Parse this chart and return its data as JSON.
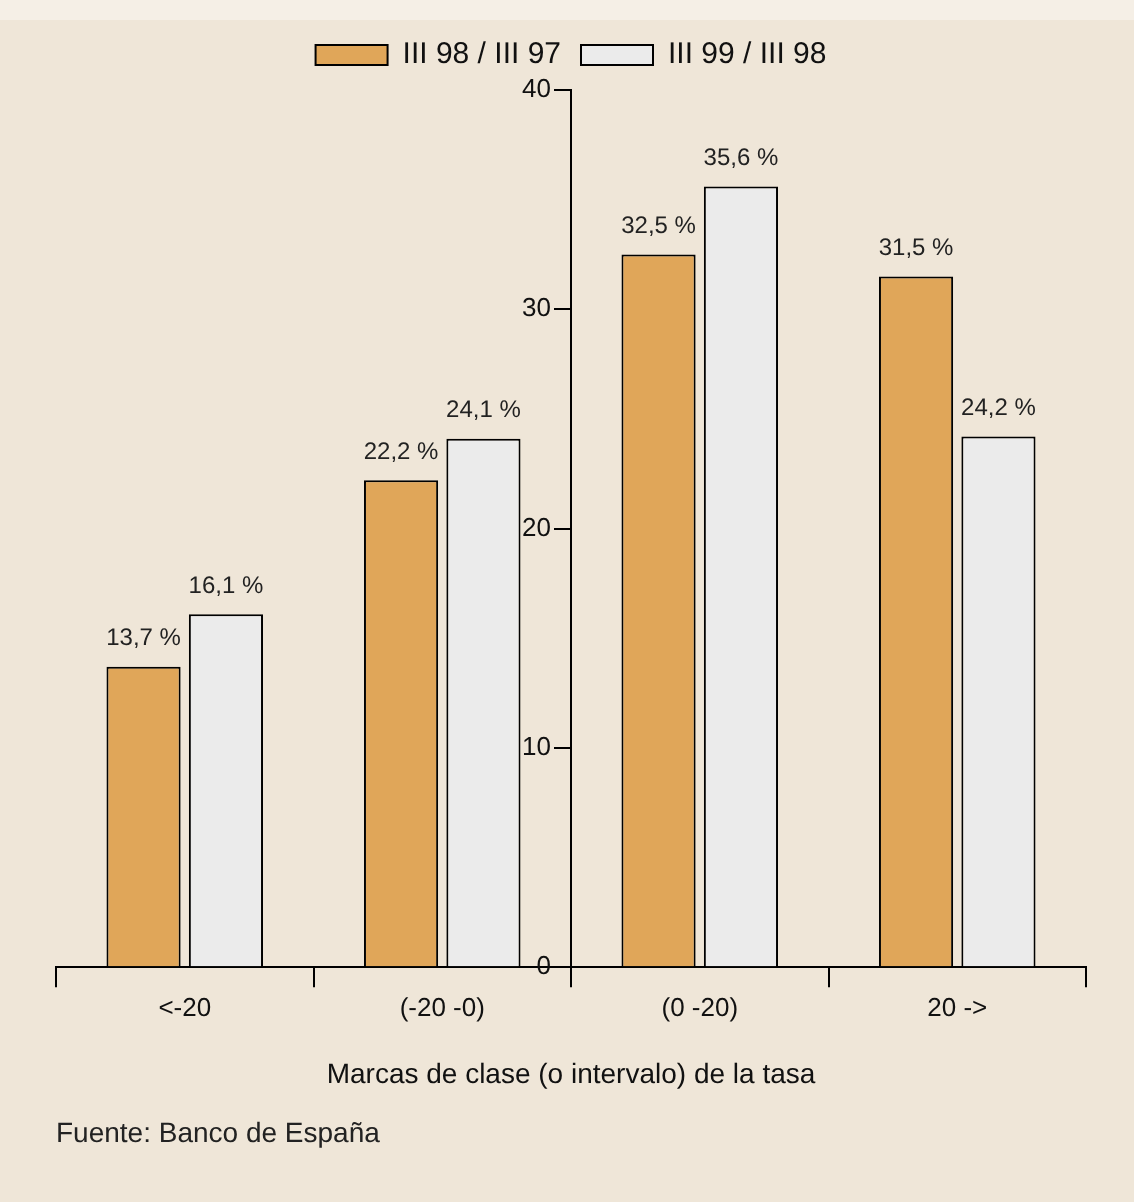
{
  "chart_data": {
    "type": "bar",
    "xlabel": "Marcas de clase (o intervalo) de la tasa",
    "categories": [
      "<-20",
      "(-20 -0)",
      "(0 -20)",
      "20 ->"
    ],
    "series": [
      {
        "name": "III 98 / III 97",
        "color": "#e0a659",
        "values": [
          13.7,
          22.2,
          32.5,
          31.5
        ],
        "value_labels": [
          "13,7 %",
          "22,2 %",
          "32,5 %",
          "31,5 %"
        ]
      },
      {
        "name": "III 99 / III 98",
        "color": "#ebebeb",
        "values": [
          16.1,
          24.1,
          35.6,
          24.2
        ],
        "value_labels": [
          "16,1 %",
          "24,1 %",
          "35,6 %",
          "24,2 %"
        ]
      }
    ],
    "ylim": [
      0,
      40
    ],
    "yticks": [
      0,
      10,
      20,
      30,
      40
    ],
    "grid": false,
    "legend": "top",
    "annotations": [
      "Fuente: Banco de España"
    ]
  }
}
